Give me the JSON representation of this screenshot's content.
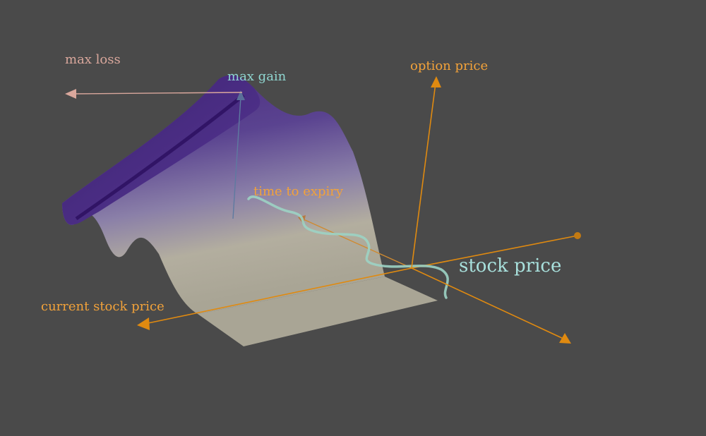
{
  "labels": {
    "max_loss": "max loss",
    "max_gain": "max gain",
    "option_price": "option price",
    "time_to_expiry": "time to expiry",
    "stock_price": "stock price",
    "current_stock_price": "current stock price"
  },
  "colors": {
    "background": "#4a4a4a",
    "axis": "#e08a10",
    "axis_label": "#f2a23a",
    "max_loss": "#d9a79c",
    "max_gain": "#8fd6d0",
    "stock_price_label": "#a8e0dc",
    "stock_path": "#9cd3c4",
    "surface_top": "#4b2c80",
    "surface_bottom": "#b9b6a6"
  }
}
